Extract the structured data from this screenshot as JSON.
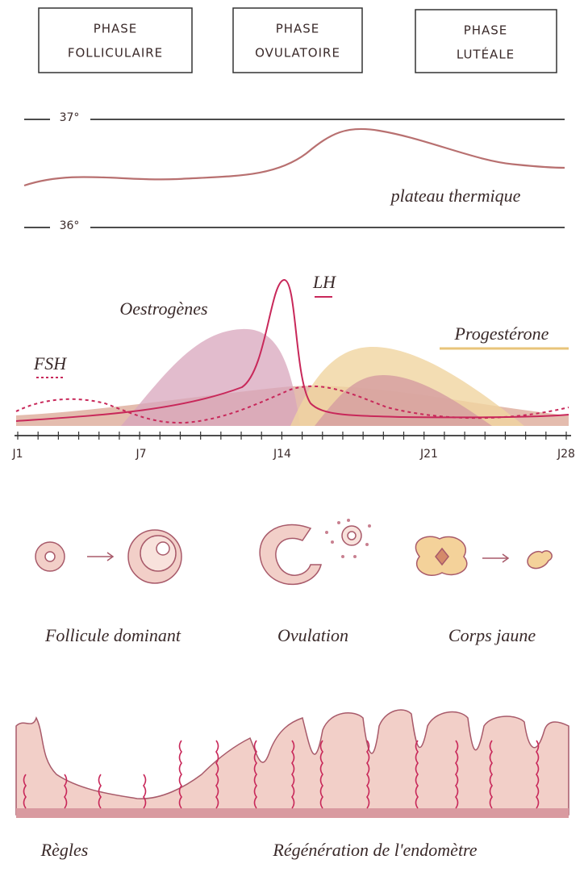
{
  "phases": [
    {
      "label": "PHASE",
      "name": "FOLLICULAIRE"
    },
    {
      "label": "PHASE",
      "name": "OVULATOIRE"
    },
    {
      "label": "PHASE",
      "name": "LUTÉALE"
    }
  ],
  "temperature": {
    "high": "37°",
    "low": "36°",
    "label": "plateau thermique"
  },
  "hormones": {
    "oestrogen": "Oestrogènes",
    "lh": "LH",
    "progesterone": "Progestérone",
    "fsh": "FSH"
  },
  "days": [
    "J1",
    "J7",
    "J14",
    "J21",
    "J28"
  ],
  "ovary": {
    "follicle": "Follicule dominant",
    "ovulation": "Ovulation",
    "corpus": "Corps jaune"
  },
  "endometrium": {
    "menses": "Règles",
    "regeneration": "Régénération de l'endomètre"
  }
}
